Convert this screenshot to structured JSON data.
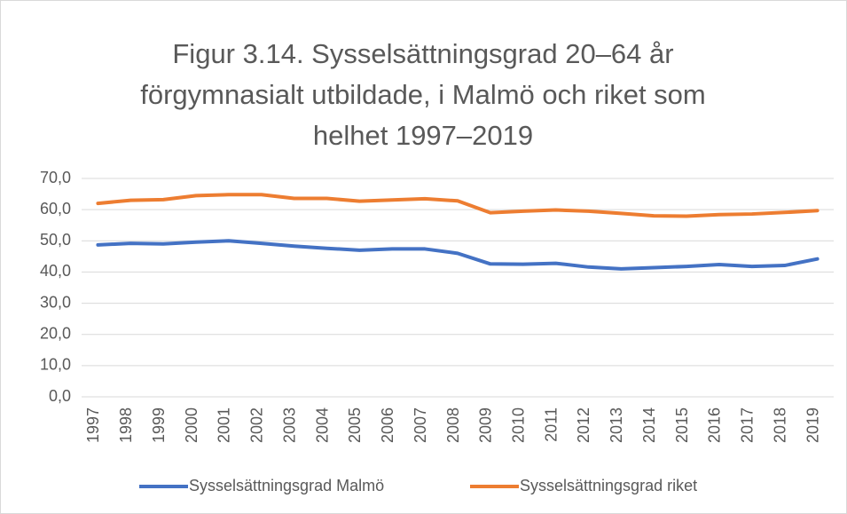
{
  "chart_data": {
    "type": "line",
    "title": "Figur 3.14. Sysselsättningsgrad 20–64 år förgymnasialt utbildade, i Malmö och riket som helhet 1997–2019",
    "categories": [
      "1997",
      "1998",
      "1999",
      "2000",
      "2001",
      "2002",
      "2003",
      "2004",
      "2005",
      "2006",
      "2007",
      "2008",
      "2009",
      "2010",
      "2011",
      "2012",
      "2013",
      "2014",
      "2015",
      "2016",
      "2017",
      "2018",
      "2019"
    ],
    "series": [
      {
        "name": "Sysselsättningsgrad Malmö",
        "color": "#4472c4",
        "values": [
          48.7,
          49.2,
          49.0,
          49.6,
          50.0,
          49.2,
          48.3,
          47.6,
          47.0,
          47.4,
          47.4,
          46.0,
          42.6,
          42.5,
          42.8,
          41.6,
          41.0,
          41.4,
          41.8,
          42.4,
          41.8,
          42.1,
          44.2
        ]
      },
      {
        "name": "Sysselsättningsgrad riket",
        "color": "#ed7d31",
        "values": [
          62.0,
          63.0,
          63.2,
          64.5,
          64.8,
          64.8,
          63.6,
          63.6,
          62.7,
          63.1,
          63.5,
          62.8,
          59.0,
          59.5,
          59.9,
          59.5,
          58.8,
          58.0,
          57.9,
          58.4,
          58.6,
          59.1,
          59.7
        ]
      }
    ],
    "ylim": [
      0,
      70
    ],
    "yticks": [
      {
        "value": 0,
        "label": "0,0"
      },
      {
        "value": 10,
        "label": "10,0"
      },
      {
        "value": 20,
        "label": "20,0"
      },
      {
        "value": 30,
        "label": "30,0"
      },
      {
        "value": 40,
        "label": "40,0"
      },
      {
        "value": 50,
        "label": "50,0"
      },
      {
        "value": 60,
        "label": "60,0"
      },
      {
        "value": 70,
        "label": "70,0"
      }
    ],
    "grid": true,
    "legend": "bottom"
  }
}
